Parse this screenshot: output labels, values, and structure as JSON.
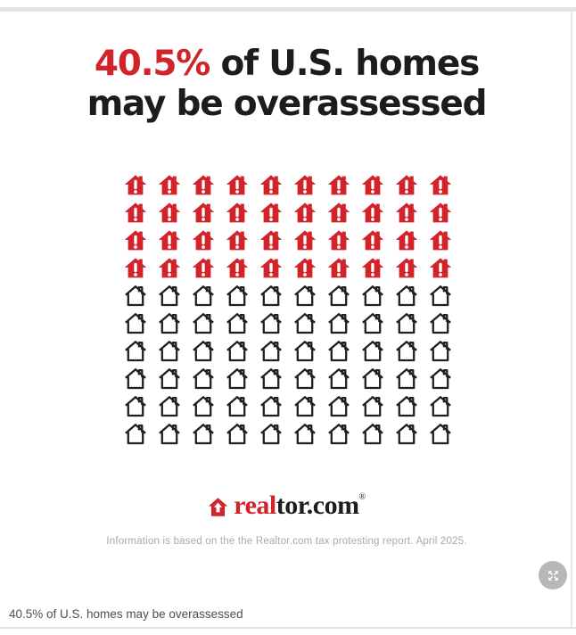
{
  "figure": {
    "title": {
      "highlight": "40.5%",
      "line1_rest": " of U.S. homes",
      "line2": "may be overassessed"
    },
    "logo": {
      "prefix": "real",
      "suffix": "tor.com",
      "trademark": "®"
    },
    "footnote": "Information is based on the the Realtor.com tax protesting report. April 2025."
  },
  "caption": "40.5% of U.S. homes may be overassessed",
  "expand_button": {
    "icon": "expand-arrows-icon"
  },
  "colors": {
    "accent_red": "#d2232a",
    "title_black": "#1c1c1c",
    "house_outline_black": "#231f20",
    "footnote_gray": "#a9a9a9",
    "caption_gray": "#46505a",
    "frame_gray": "#e4e4e4",
    "expand_button_gray": "#b7b7b7"
  },
  "chart_data": {
    "type": "pictogram",
    "title": "40.5% of U.S. homes may be overassessed",
    "percent_highlighted": 40.5,
    "icon": "house",
    "grid": {
      "rows": 10,
      "cols": 10
    },
    "total_icons": 100,
    "highlighted_icons": 40,
    "plain_icons": 60,
    "highlighted_color": "#d2232a",
    "plain_color": "#231f20",
    "highlighted_marker": "red filled house with white exclamation mark",
    "plain_marker": "black outlined house",
    "source_note": "Information is based on the the Realtor.com tax protesting report. April 2025."
  }
}
